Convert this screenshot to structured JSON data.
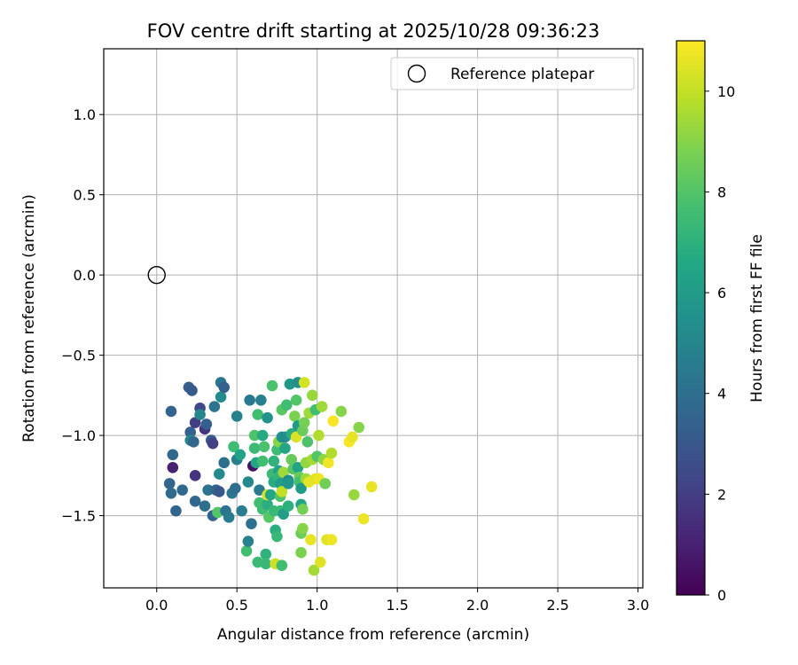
{
  "chart_data": {
    "type": "scatter",
    "title": "FOV centre drift starting at 2025/10/28 09:36:23",
    "xlabel": "Angular distance from reference (arcmin)",
    "ylabel": "Rotation from reference (arcmin)",
    "xlim": [
      -0.33,
      3.03
    ],
    "ylim": [
      -1.95,
      1.41
    ],
    "xticks": [
      0.0,
      0.5,
      1.0,
      1.5,
      2.0,
      2.5,
      3.0
    ],
    "xtick_labels": [
      "0.0",
      "0.5",
      "1.0",
      "1.5",
      "2.0",
      "2.5",
      "3.0"
    ],
    "yticks": [
      -1.5,
      -1.0,
      -0.5,
      0.0,
      0.5,
      1.0
    ],
    "ytick_labels": [
      "−1.5",
      "−1.0",
      "−0.5",
      "0.0",
      "0.5",
      "1.0"
    ],
    "grid": true,
    "legend": {
      "placement": "top-right",
      "entries": [
        "Reference platepar"
      ]
    },
    "reference_point": {
      "name": "Reference platepar",
      "x": 0.0,
      "y": 0.0
    },
    "colorbar": {
      "label": "Hours from first FF file",
      "range": [
        0,
        11
      ],
      "ticks": [
        0,
        2,
        4,
        6,
        8,
        10
      ],
      "tick_labels": [
        "0",
        "2",
        "4",
        "6",
        "8",
        "10"
      ],
      "colormap": "viridis"
    },
    "points": [
      {
        "x": 0.09,
        "y": -0.85,
        "h": 3.5
      },
      {
        "x": 0.1,
        "y": -1.12,
        "h": 3.7
      },
      {
        "x": 0.1,
        "y": -1.2,
        "h": 1.0
      },
      {
        "x": 0.08,
        "y": -1.3,
        "h": 3.6
      },
      {
        "x": 0.09,
        "y": -1.36,
        "h": 3.8
      },
      {
        "x": 0.12,
        "y": -1.47,
        "h": 3.5
      },
      {
        "x": 0.16,
        "y": -1.34,
        "h": 3.7
      },
      {
        "x": 0.2,
        "y": -0.7,
        "h": 3.3
      },
      {
        "x": 0.22,
        "y": -0.72,
        "h": 3.1
      },
      {
        "x": 0.21,
        "y": -0.98,
        "h": 3.4
      },
      {
        "x": 0.21,
        "y": -1.03,
        "h": 5.0
      },
      {
        "x": 0.23,
        "y": -1.04,
        "h": 3.6
      },
      {
        "x": 0.24,
        "y": -0.92,
        "h": 2.0
      },
      {
        "x": 0.27,
        "y": -0.83,
        "h": 2.4
      },
      {
        "x": 0.27,
        "y": -0.87,
        "h": 5.0
      },
      {
        "x": 0.24,
        "y": -1.25,
        "h": 1.6
      },
      {
        "x": 0.24,
        "y": -1.41,
        "h": 3.6
      },
      {
        "x": 0.3,
        "y": -0.96,
        "h": 1.6
      },
      {
        "x": 0.31,
        "y": -0.93,
        "h": 3.3
      },
      {
        "x": 0.3,
        "y": -1.44,
        "h": 4.0
      },
      {
        "x": 0.32,
        "y": -1.34,
        "h": 4.2
      },
      {
        "x": 0.34,
        "y": -1.03,
        "h": 3.1
      },
      {
        "x": 0.35,
        "y": -1.05,
        "h": 2.1
      },
      {
        "x": 0.36,
        "y": -0.82,
        "h": 4.2
      },
      {
        "x": 0.35,
        "y": -1.5,
        "h": 3.4
      },
      {
        "x": 0.37,
        "y": -1.34,
        "h": 3.6
      },
      {
        "x": 0.39,
        "y": -1.35,
        "h": 3.0
      },
      {
        "x": 0.39,
        "y": -1.24,
        "h": 5.2
      },
      {
        "x": 0.38,
        "y": -1.48,
        "h": 8.0
      },
      {
        "x": 0.4,
        "y": -0.67,
        "h": 4.3
      },
      {
        "x": 0.4,
        "y": -0.76,
        "h": 5.2
      },
      {
        "x": 0.42,
        "y": -0.7,
        "h": 3.4
      },
      {
        "x": 0.42,
        "y": -1.17,
        "h": 4.0
      },
      {
        "x": 0.43,
        "y": -1.47,
        "h": 4.2
      },
      {
        "x": 0.45,
        "y": -1.51,
        "h": 4.5
      },
      {
        "x": 0.47,
        "y": -1.36,
        "h": 4.3
      },
      {
        "x": 0.48,
        "y": -1.07,
        "h": 7.5
      },
      {
        "x": 0.49,
        "y": -1.33,
        "h": 4.0
      },
      {
        "x": 0.5,
        "y": -0.88,
        "h": 4.8
      },
      {
        "x": 0.5,
        "y": -1.15,
        "h": 4.6
      },
      {
        "x": 0.52,
        "y": -1.12,
        "h": 6.3
      },
      {
        "x": 0.53,
        "y": -1.47,
        "h": 4.6
      },
      {
        "x": 0.56,
        "y": -1.72,
        "h": 7.6
      },
      {
        "x": 0.57,
        "y": -1.29,
        "h": 5.1
      },
      {
        "x": 0.57,
        "y": -1.66,
        "h": 4.8
      },
      {
        "x": 0.58,
        "y": -0.78,
        "h": 4.4
      },
      {
        "x": 0.59,
        "y": -1.55,
        "h": 4.1
      },
      {
        "x": 0.6,
        "y": -1.19,
        "h": 0.6
      },
      {
        "x": 0.61,
        "y": -1.0,
        "h": 7.9
      },
      {
        "x": 0.61,
        "y": -1.08,
        "h": 7.4
      },
      {
        "x": 0.63,
        "y": -0.87,
        "h": 7.6
      },
      {
        "x": 0.62,
        "y": -1.17,
        "h": 6.5
      },
      {
        "x": 0.63,
        "y": -1.79,
        "h": 7.4
      },
      {
        "x": 0.64,
        "y": -1.34,
        "h": 4.5
      },
      {
        "x": 0.64,
        "y": -1.42,
        "h": 7.6
      },
      {
        "x": 0.65,
        "y": -0.78,
        "h": 4.7
      },
      {
        "x": 0.66,
        "y": -1.0,
        "h": 6.7
      },
      {
        "x": 0.66,
        "y": -1.16,
        "h": 7.6
      },
      {
        "x": 0.66,
        "y": -1.46,
        "h": 7.5
      },
      {
        "x": 0.67,
        "y": -1.07,
        "h": 7.8
      },
      {
        "x": 0.68,
        "y": -1.74,
        "h": 7.1
      },
      {
        "x": 0.68,
        "y": -1.8,
        "h": 7.3
      },
      {
        "x": 0.69,
        "y": -0.89,
        "h": 5.6
      },
      {
        "x": 0.69,
        "y": -1.43,
        "h": 6.9
      },
      {
        "x": 0.69,
        "y": -1.37,
        "h": 10.3
      },
      {
        "x": 0.7,
        "y": -1.51,
        "h": 8.1
      },
      {
        "x": 0.71,
        "y": -1.37,
        "h": 6.5
      },
      {
        "x": 0.72,
        "y": -0.69,
        "h": 7.8
      },
      {
        "x": 0.72,
        "y": -1.24,
        "h": 7.4
      },
      {
        "x": 0.73,
        "y": -1.16,
        "h": 7.1
      },
      {
        "x": 0.73,
        "y": -1.29,
        "h": 6.8
      },
      {
        "x": 0.73,
        "y": -1.47,
        "h": 7.3
      },
      {
        "x": 0.74,
        "y": -1.59,
        "h": 6.9
      },
      {
        "x": 0.74,
        "y": -1.8,
        "h": 10.2
      },
      {
        "x": 0.75,
        "y": -1.63,
        "h": 7.3
      },
      {
        "x": 0.75,
        "y": -1.09,
        "h": 7.5
      },
      {
        "x": 0.76,
        "y": -1.04,
        "h": 9.0
      },
      {
        "x": 0.76,
        "y": -1.22,
        "h": 6.3
      },
      {
        "x": 0.76,
        "y": -1.26,
        "h": 7.2
      },
      {
        "x": 0.77,
        "y": -1.3,
        "h": 6.1
      },
      {
        "x": 0.77,
        "y": -1.38,
        "h": 7.9
      },
      {
        "x": 0.77,
        "y": -1.47,
        "h": 7.4
      },
      {
        "x": 0.78,
        "y": -1.81,
        "h": 7.6
      },
      {
        "x": 0.78,
        "y": -0.84,
        "h": 8.1
      },
      {
        "x": 0.78,
        "y": -1.01,
        "h": 5.6
      },
      {
        "x": 0.78,
        "y": -1.35,
        "h": 10.0
      },
      {
        "x": 0.79,
        "y": -1.49,
        "h": 6.1
      },
      {
        "x": 0.79,
        "y": -1.23,
        "h": 9.4
      },
      {
        "x": 0.8,
        "y": -1.01,
        "h": 5.3
      },
      {
        "x": 0.8,
        "y": -1.08,
        "h": 6.4
      },
      {
        "x": 0.81,
        "y": -0.81,
        "h": 7.6
      },
      {
        "x": 0.82,
        "y": -1.28,
        "h": 5.3
      },
      {
        "x": 0.82,
        "y": -1.3,
        "h": 5.8
      },
      {
        "x": 0.82,
        "y": -1.44,
        "h": 7.0
      },
      {
        "x": 0.83,
        "y": -0.68,
        "h": 5.8
      },
      {
        "x": 0.84,
        "y": -0.99,
        "h": 6.9
      },
      {
        "x": 0.84,
        "y": -1.15,
        "h": 8.4
      },
      {
        "x": 0.85,
        "y": -1.21,
        "h": 8.1
      },
      {
        "x": 0.86,
        "y": -0.88,
        "h": 8.8
      },
      {
        "x": 0.87,
        "y": -0.78,
        "h": 8.0
      },
      {
        "x": 0.87,
        "y": -1.01,
        "h": 10.4
      },
      {
        "x": 0.88,
        "y": -0.67,
        "h": 5.4
      },
      {
        "x": 0.88,
        "y": -0.94,
        "h": 6.0
      },
      {
        "x": 0.88,
        "y": -1.2,
        "h": 6.4
      },
      {
        "x": 0.89,
        "y": -1.26,
        "h": 8.4
      },
      {
        "x": 0.89,
        "y": -1.29,
        "h": 7.7
      },
      {
        "x": 0.9,
        "y": -1.33,
        "h": 6.0
      },
      {
        "x": 0.9,
        "y": -1.43,
        "h": 6.4
      },
      {
        "x": 0.9,
        "y": -1.61,
        "h": 8.5
      },
      {
        "x": 0.9,
        "y": -1.73,
        "h": 8.8
      },
      {
        "x": 0.91,
        "y": -0.97,
        "h": 8.5
      },
      {
        "x": 0.91,
        "y": -1.46,
        "h": 8.7
      },
      {
        "x": 0.91,
        "y": -1.58,
        "h": 9.0
      },
      {
        "x": 0.92,
        "y": -0.67,
        "h": 10.3
      },
      {
        "x": 0.92,
        "y": -0.92,
        "h": 8.7
      },
      {
        "x": 0.93,
        "y": -1.17,
        "h": 9.2
      },
      {
        "x": 0.93,
        "y": -1.27,
        "h": 9.4
      },
      {
        "x": 0.94,
        "y": -1.04,
        "h": 7.9
      },
      {
        "x": 0.95,
        "y": -0.86,
        "h": 9.4
      },
      {
        "x": 0.95,
        "y": -1.29,
        "h": 10.6
      },
      {
        "x": 0.96,
        "y": -1.65,
        "h": 10.6
      },
      {
        "x": 0.97,
        "y": -0.75,
        "h": 9.3
      },
      {
        "x": 0.97,
        "y": -1.15,
        "h": 9.5
      },
      {
        "x": 0.98,
        "y": -1.84,
        "h": 9.5
      },
      {
        "x": 0.99,
        "y": -1.27,
        "h": 10.5
      },
      {
        "x": 0.99,
        "y": -0.84,
        "h": 7.6
      },
      {
        "x": 1.0,
        "y": -1.13,
        "h": 8.0
      },
      {
        "x": 1.01,
        "y": -1.0,
        "h": 9.7
      },
      {
        "x": 1.01,
        "y": -1.27,
        "h": 10.7
      },
      {
        "x": 1.02,
        "y": -1.79,
        "h": 10.5
      },
      {
        "x": 1.03,
        "y": -0.82,
        "h": 9.4
      },
      {
        "x": 1.04,
        "y": -1.15,
        "h": 9.1
      },
      {
        "x": 1.05,
        "y": -1.3,
        "h": 8.6
      },
      {
        "x": 1.06,
        "y": -1.65,
        "h": 10.5
      },
      {
        "x": 1.07,
        "y": -1.17,
        "h": 10.8
      },
      {
        "x": 1.09,
        "y": -1.65,
        "h": 10.7
      },
      {
        "x": 1.09,
        "y": -1.11,
        "h": 9.7
      },
      {
        "x": 1.1,
        "y": -0.91,
        "h": 10.9
      },
      {
        "x": 1.15,
        "y": -0.85,
        "h": 9.0
      },
      {
        "x": 1.2,
        "y": -1.04,
        "h": 10.9
      },
      {
        "x": 1.22,
        "y": -1.01,
        "h": 10.6
      },
      {
        "x": 1.23,
        "y": -1.37,
        "h": 9.3
      },
      {
        "x": 1.26,
        "y": -0.95,
        "h": 9.0
      },
      {
        "x": 1.29,
        "y": -1.52,
        "h": 10.7
      },
      {
        "x": 1.34,
        "y": -1.32,
        "h": 10.6
      }
    ]
  }
}
